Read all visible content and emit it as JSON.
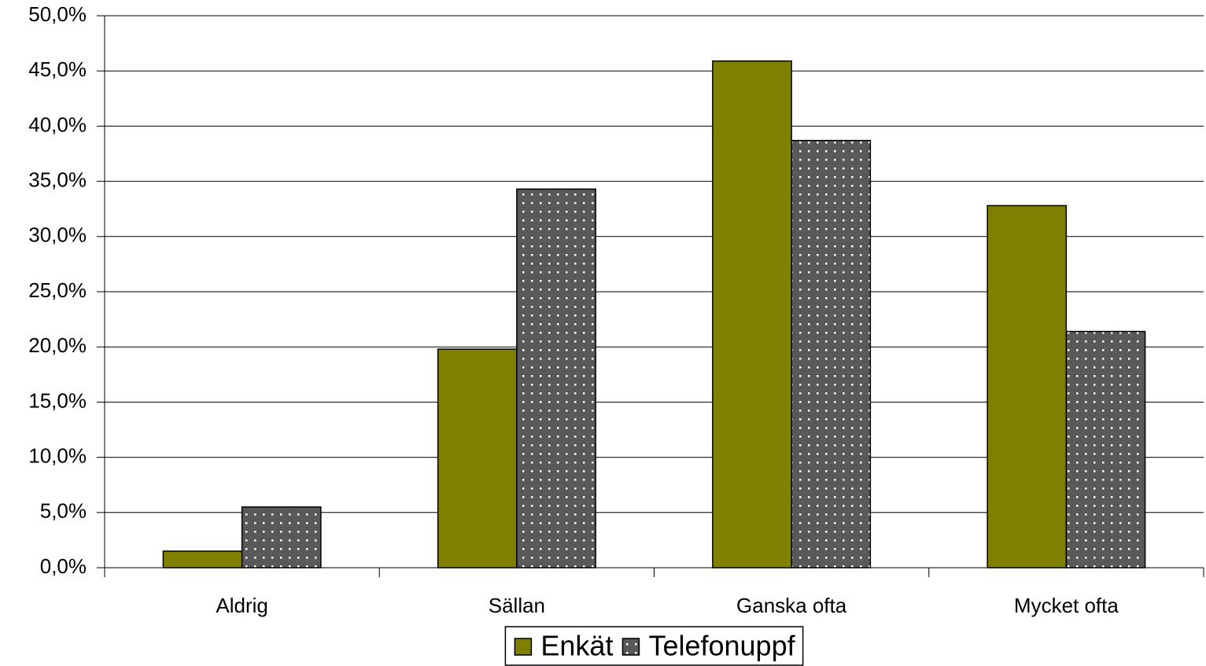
{
  "chart_data": {
    "type": "bar",
    "categories": [
      "Aldrig",
      "Sällan",
      "Ganska ofta",
      "Mycket ofta"
    ],
    "series": [
      {
        "name": "Enkät",
        "color": "#808000",
        "values": [
          1.5,
          19.8,
          45.9,
          32.8
        ]
      },
      {
        "name": "Telefonuppf",
        "color": "#595959",
        "pattern": "dots",
        "values": [
          5.5,
          34.3,
          38.7,
          21.4
        ]
      }
    ],
    "ylim": [
      0,
      50
    ],
    "yticks": [
      {
        "value": 0,
        "label": "0,0%"
      },
      {
        "value": 5,
        "label": "5,0%"
      },
      {
        "value": 10,
        "label": "10,0%"
      },
      {
        "value": 15,
        "label": "15,0%"
      },
      {
        "value": 20,
        "label": "20,0%"
      },
      {
        "value": 25,
        "label": "25,0%"
      },
      {
        "value": 30,
        "label": "30,0%"
      },
      {
        "value": 35,
        "label": "35,0%"
      },
      {
        "value": 40,
        "label": "40,0%"
      },
      {
        "value": 45,
        "label": "45,0%"
      },
      {
        "value": 50,
        "label": "50,0%"
      }
    ],
    "grid": true,
    "legend": "bottom"
  }
}
